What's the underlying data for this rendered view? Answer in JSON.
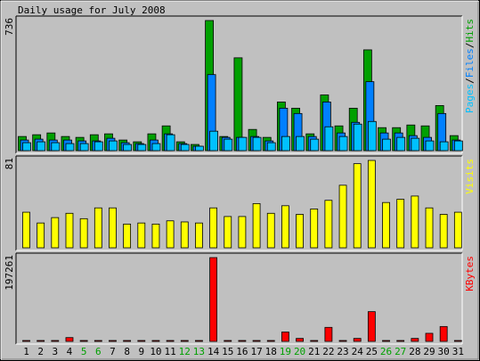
{
  "chart_data": {
    "type": "bar",
    "title": "Daily usage for July 2008",
    "categories": [
      "1",
      "2",
      "3",
      "4",
      "5",
      "6",
      "7",
      "8",
      "9",
      "10",
      "11",
      "12",
      "13",
      "14",
      "15",
      "16",
      "17",
      "18",
      "19",
      "20",
      "21",
      "22",
      "23",
      "24",
      "25",
      "26",
      "27",
      "28",
      "29",
      "30",
      "31"
    ],
    "weekend_days": [
      "5",
      "6",
      "12",
      "13",
      "19",
      "20",
      "26",
      "27"
    ],
    "legend": {
      "hits": "Hits",
      "files": "Files",
      "pages": "Pages",
      "visits": "Visits",
      "kbytes": "KBytes",
      "sep": "/"
    },
    "panels": [
      {
        "id": "hits",
        "max_label": "736",
        "ylim": [
          0,
          736
        ],
        "series": [
          {
            "name": "Hits",
            "color": "#00a000",
            "values": [
              80,
              90,
              100,
              80,
              75,
              90,
              95,
              60,
              50,
              95,
              140,
              50,
              35,
              736,
              80,
              525,
              120,
              75,
              275,
              240,
              95,
              315,
              140,
              240,
              570,
              130,
              130,
              145,
              140,
              255,
              85
            ]
          },
          {
            "name": "Files",
            "color": "#0080ff",
            "values": [
              60,
              65,
              60,
              60,
              55,
              55,
              70,
              45,
              40,
              60,
              95,
              40,
              25,
              430,
              75,
              75,
              80,
              55,
              240,
              210,
              80,
              275,
              100,
              160,
              390,
              100,
              100,
              85,
              75,
              210,
              60
            ]
          },
          {
            "name": "Pages",
            "color": "#00c0ff",
            "values": [
              45,
              50,
              45,
              40,
              40,
              50,
              55,
              35,
              35,
              40,
              90,
              35,
              25,
              110,
              65,
              75,
              75,
              45,
              80,
              80,
              65,
              135,
              80,
              150,
              165,
              65,
              75,
              70,
              55,
              50,
              55
            ]
          }
        ]
      },
      {
        "id": "visits",
        "max_label": "81",
        "ylim": [
          0,
          81
        ],
        "series": [
          {
            "name": "Visits",
            "color": "#ffff00",
            "values": [
              33,
              23,
              28,
              32,
              27,
              37,
              37,
              22,
              23,
              22,
              25,
              24,
              23,
              37,
              29,
              29,
              41,
              32,
              39,
              31,
              36,
              44,
              58,
              78,
              81,
              42,
              45,
              48,
              37,
              31,
              33
            ]
          }
        ]
      },
      {
        "id": "kbytes",
        "max_label": "197261",
        "ylim": [
          0,
          197261
        ],
        "series": [
          {
            "name": "KBytes",
            "color": "#ff0000",
            "values": [
              1500,
              1500,
              1500,
              9000,
              1500,
              1500,
              1500,
              1500,
              1500,
              1500,
              1500,
              1500,
              1500,
              197261,
              1500,
              1500,
              1500,
              1500,
              22000,
              7000,
              1500,
              33000,
              1500,
              7000,
              70000,
              1500,
              1500,
              7000,
              19000,
              35000,
              1500
            ]
          }
        ]
      }
    ]
  }
}
